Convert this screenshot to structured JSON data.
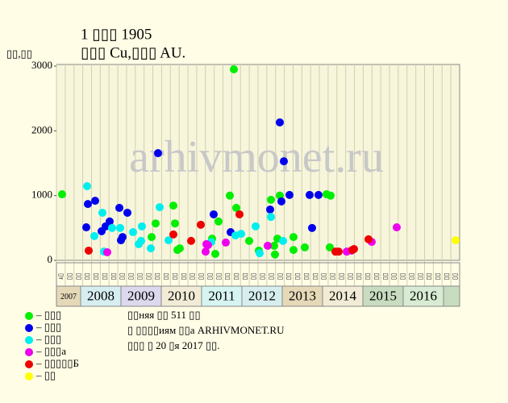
{
  "chart_data": {
    "type": "scatter",
    "title": "1 ▯▯▯ 1905",
    "subtitle": "▯▯▯ Cu,▯▯▯ AU.",
    "ylabel": "▯▯,▯▯",
    "watermark": "arhivmonet.ru",
    "xlim": [
      2007.4,
      2017.4
    ],
    "ylim": [
      0,
      3000
    ],
    "yticks": [
      0,
      1000,
      2000,
      3000
    ],
    "grid": true,
    "years": [
      2007,
      2008,
      2009,
      2010,
      2011,
      2012,
      2013,
      2014,
      2015,
      2016
    ],
    "year_colors": [
      "#e6d9b8",
      "#d7eef0",
      "#dcd9ee",
      "#f2ecd6",
      "#d6f4f1",
      "#d7eef0",
      "#e6d9b8",
      "#f2ecd6",
      "#c8dcc0",
      "#d8ecd4"
    ],
    "column_labels": [
      "▯т",
      "▯▯",
      "▯▯",
      "▯▯",
      "▯▯",
      "▯▯",
      "▯▯",
      "▯▯",
      "▯▯",
      "▯▯",
      "▯▯",
      "▯▯",
      "▯▯",
      "▯▯",
      "▯▯",
      "▯▯",
      "▯▯",
      "▯▯",
      "▯▯",
      "▯▯",
      "▯▯",
      "▯▯",
      "▯▯",
      "▯▯",
      "▯▯",
      "▯▯",
      "▯▯",
      "▯▯",
      "▯▯",
      "▯▯",
      "▯▯",
      "▯▯",
      "▯▯",
      "▯▯",
      "▯▯",
      "▯▯",
      "▯▯",
      "▯▯",
      "▯▯",
      "▯▯",
      "▯▯",
      "▯▯",
      "▯▯",
      "▯▯",
      "▯▯",
      "▯▯"
    ],
    "series": [
      {
        "name": "– ▯▯▯",
        "color": "#00ee00",
        "x": [
          2007.54,
          2009.86,
          2009.76,
          2010.3,
          2010.34,
          2010.4,
          2010.46,
          2011.26,
          2011.34,
          2011.42,
          2011.7,
          2011.8,
          2011.86,
          2012.18,
          2012.42,
          2012.72,
          2012.8,
          2012.82,
          2012.88,
          2012.94,
          2013.28,
          2013.28,
          2013.56,
          2014.1,
          2014.2,
          2014.18
        ],
        "values": [
          1020,
          570,
          360,
          845,
          570,
          160,
          185,
          335,
          100,
          600,
          1000,
          2950,
          810,
          300,
          150,
          935,
          225,
          90,
          335,
          1000,
          360,
          160,
          200,
          1020,
          1000,
          200
        ]
      },
      {
        "name": "– ▯▯▯",
        "color": "#0000ee",
        "x": [
          2008.14,
          2008.18,
          2008.36,
          2008.52,
          2008.62,
          2008.72,
          2008.96,
          2009.0,
          2009.04,
          2009.16,
          2009.92,
          2011.3,
          2011.72,
          2012.7,
          2012.94,
          2012.98,
          2013.04,
          2013.18,
          2013.68,
          2013.74,
          2013.9
        ],
        "values": [
          510,
          870,
          920,
          450,
          525,
          600,
          810,
          310,
          360,
          735,
          1655,
          710,
          435,
          785,
          2130,
          910,
          1530,
          1010,
          1010,
          500,
          1010
        ]
      },
      {
        "name": "– ▯▯▯",
        "color": "#00eeee",
        "x": [
          2008.16,
          2008.34,
          2008.54,
          2008.58,
          2008.78,
          2008.98,
          2009.3,
          2009.44,
          2009.5,
          2009.52,
          2009.74,
          2009.96,
          2010.18,
          2011.24,
          2011.84,
          2011.98,
          2012.34,
          2012.44,
          2012.72,
          2013.02
        ],
        "values": [
          1145,
          375,
          735,
          135,
          500,
          500,
          435,
          250,
          300,
          525,
          185,
          820,
          310,
          285,
          385,
          410,
          525,
          110,
          670,
          300
        ]
      },
      {
        "name": "– ▯▯▯а",
        "color": "#ee00ee",
        "x": [
          2008.66,
          2011.12,
          2011.16,
          2011.1,
          2011.6,
          2012.64,
          2014.6,
          2014.72,
          2015.22,
          2015.84
        ],
        "values": [
          125,
          250,
          235,
          135,
          275,
          225,
          135,
          150,
          285,
          510
        ]
      },
      {
        "name": "– ▯▯▯▯▯Б",
        "color": "#ee0000",
        "x": [
          2008.2,
          2010.3,
          2010.74,
          2010.98,
          2011.94,
          2014.32,
          2014.4,
          2014.74,
          2014.78,
          2015.14
        ],
        "values": [
          150,
          400,
          300,
          550,
          710,
          135,
          135,
          160,
          175,
          325
        ]
      },
      {
        "name": "– ▯▯",
        "color": "#ffff00",
        "x": [
          2017.3
        ],
        "values": [
          310
        ]
      }
    ],
    "notes": [
      "▯▯няя ▯▯ 511 ▯▯",
      "▯ ▯▯▯▯иям ▯▯а ARHIVMONET.RU",
      "▯▯▯ ▯ 20 ▯я 2017 ▯▯."
    ]
  }
}
